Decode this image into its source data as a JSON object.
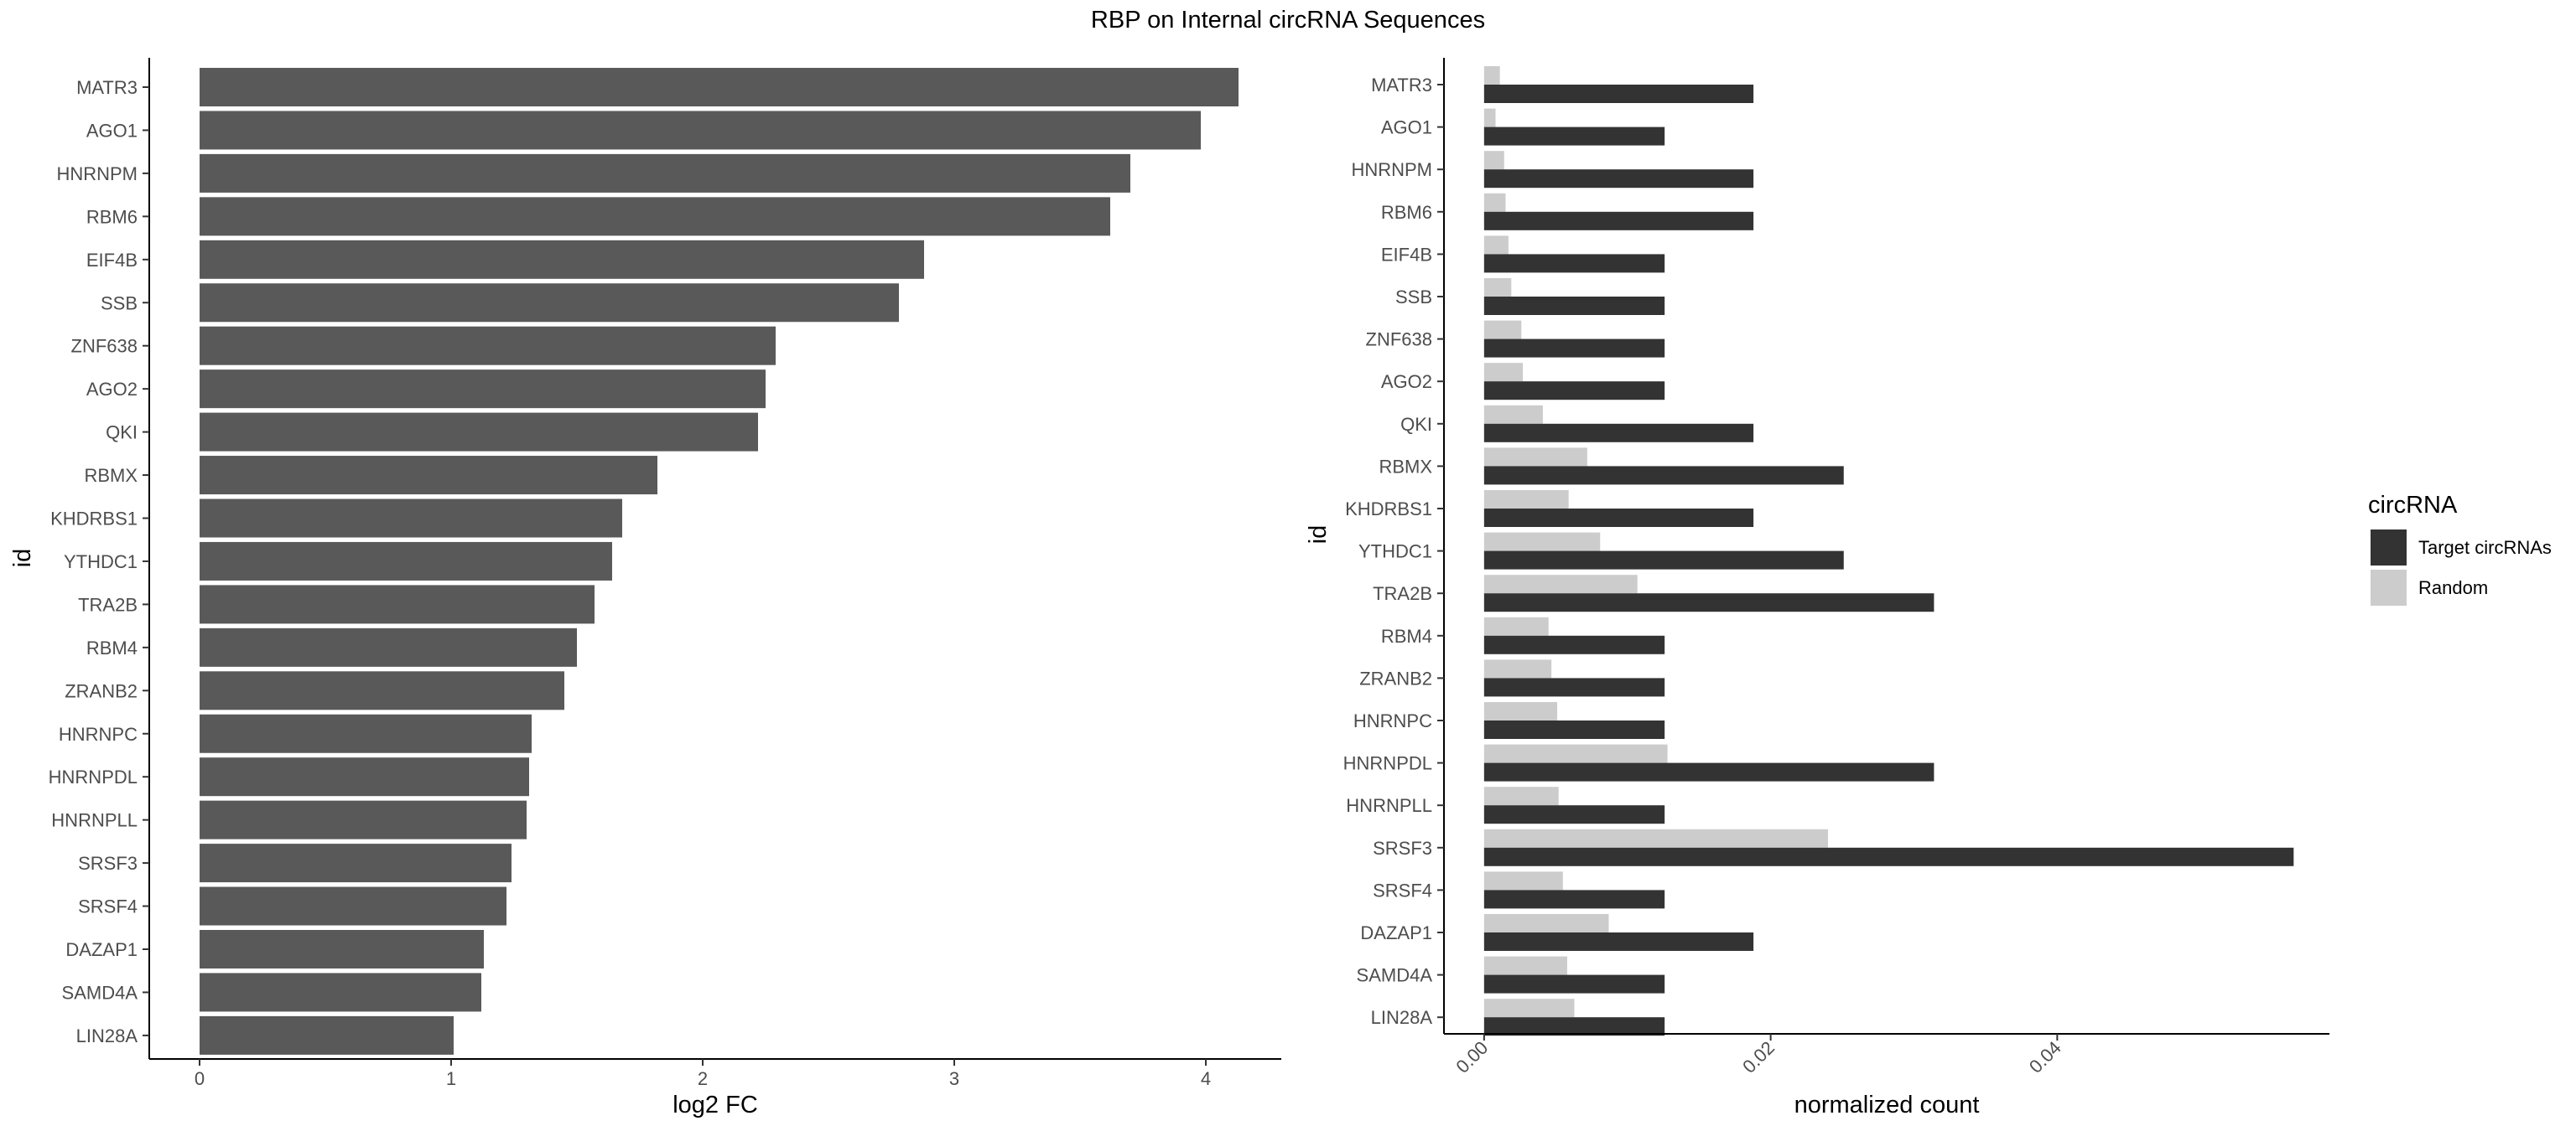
{
  "title": "RBP on Internal circRNA Sequences",
  "chart_data": [
    {
      "type": "bar",
      "orientation": "horizontal",
      "categories": [
        "MATR3",
        "AGO1",
        "HNRNPM",
        "RBM6",
        "EIF4B",
        "SSB",
        "ZNF638",
        "AGO2",
        "QKI",
        "RBMX",
        "KHDRBS1",
        "YTHDC1",
        "TRA2B",
        "RBM4",
        "ZRANB2",
        "HNRNPC",
        "HNRNPDL",
        "HNRNPLL",
        "SRSF3",
        "SRSF4",
        "DAZAP1",
        "SAMD4A",
        "LIN28A"
      ],
      "values": [
        4.13,
        3.98,
        3.7,
        3.62,
        2.88,
        2.78,
        2.29,
        2.25,
        2.22,
        1.82,
        1.68,
        1.64,
        1.57,
        1.5,
        1.45,
        1.32,
        1.31,
        1.3,
        1.24,
        1.22,
        1.13,
        1.12,
        1.01
      ],
      "xlabel": "log2 FC",
      "ylabel": "id",
      "xlim": [
        -0.2,
        4.3
      ],
      "xticks": [
        0,
        1,
        2,
        3,
        4
      ],
      "bar_color": "#595959",
      "grid": false
    },
    {
      "type": "bar",
      "orientation": "horizontal",
      "categories": [
        "MATR3",
        "AGO1",
        "HNRNPM",
        "RBM6",
        "EIF4B",
        "SSB",
        "ZNF638",
        "AGO2",
        "QKI",
        "RBMX",
        "KHDRBS1",
        "YTHDC1",
        "TRA2B",
        "RBM4",
        "ZRANB2",
        "HNRNPC",
        "HNRNPDL",
        "HNRNPLL",
        "SRSF3",
        "SRSF4",
        "DAZAP1",
        "SAMD4A",
        "LIN28A"
      ],
      "series": [
        {
          "name": "Target circRNAs",
          "color": "#333333",
          "values": [
            0.0188,
            0.0126,
            0.0188,
            0.0188,
            0.0126,
            0.0126,
            0.0126,
            0.0126,
            0.0188,
            0.0251,
            0.0188,
            0.0251,
            0.0314,
            0.0126,
            0.0126,
            0.0126,
            0.0314,
            0.0126,
            0.0565,
            0.0126,
            0.0188,
            0.0126,
            0.0126
          ]
        },
        {
          "name": "Random",
          "color": "#cccccc",
          "values": [
            0.0011,
            0.0008,
            0.0014,
            0.0015,
            0.0017,
            0.0019,
            0.0026,
            0.0027,
            0.0041,
            0.0072,
            0.0059,
            0.0081,
            0.0107,
            0.0045,
            0.0047,
            0.0051,
            0.0128,
            0.0052,
            0.024,
            0.0055,
            0.0087,
            0.0058,
            0.0063
          ]
        }
      ],
      "xlabel": "normalized count",
      "ylabel": "id",
      "xlim": [
        -0.0028,
        0.059
      ],
      "xticks": [
        0.0,
        0.02,
        0.04
      ],
      "xtick_labels": [
        "0.00",
        "0.02",
        "0.04"
      ],
      "legend_title": "circRNA",
      "legend_position": "right",
      "grid": false
    }
  ]
}
